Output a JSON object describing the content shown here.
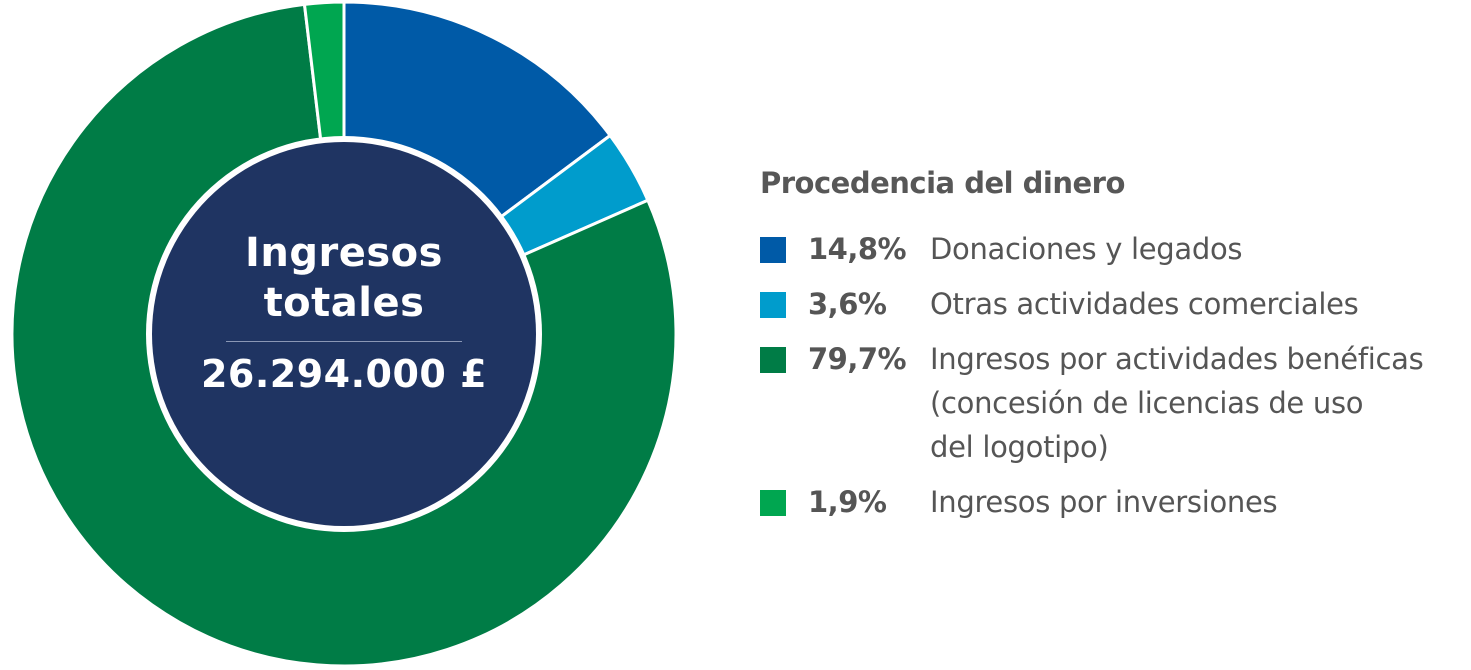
{
  "center": {
    "title_line1": "Ingresos",
    "title_line2": "totales",
    "value": "26.294.000 £"
  },
  "legend": {
    "title": "Procedencia del dinero",
    "items": [
      {
        "percent": "14,8%",
        "label": "Donaciones y legados",
        "color": "#005aa7"
      },
      {
        "percent": "3,6%",
        "label": "Otras actividades comerciales",
        "color": "#009ccc"
      },
      {
        "percent": "79,7%",
        "label_lines": [
          "Ingresos por actividades benéficas",
          "(concesión de licencias de uso",
          "del logotipo)"
        ],
        "color": "#007c46"
      },
      {
        "percent": "1,9%",
        "label": "Ingresos por inversiones",
        "color": "#00a650"
      }
    ]
  },
  "colors": {
    "center_fill": "#1f3462",
    "text": "#555555",
    "background": "#ffffff"
  },
  "chart_data": {
    "type": "pie",
    "subtype": "donut",
    "title": "Procedencia del dinero",
    "center_label": "Ingresos totales",
    "center_value": "26.294.000 £",
    "total": 26294000,
    "currency": "GBP",
    "categories": [
      "Donaciones y legados",
      "Otras actividades comerciales",
      "Ingresos por actividades benéficas (concesión de licencias de uso del logotipo)",
      "Ingresos por inversiones"
    ],
    "values": [
      14.8,
      3.6,
      79.7,
      1.9
    ],
    "unit": "%",
    "colors": [
      "#005aa7",
      "#009ccc",
      "#007c46",
      "#00a650"
    ],
    "start_angle": "12 o'clock, clockwise",
    "legend_position": "right"
  }
}
